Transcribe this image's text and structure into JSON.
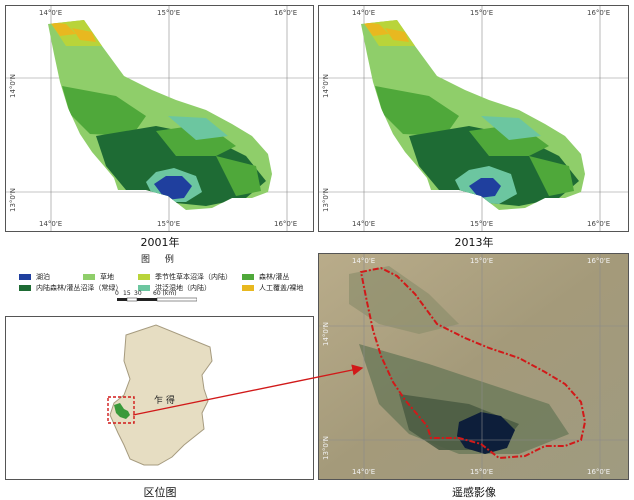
{
  "panels": {
    "map2001": {
      "caption": "2001年",
      "ticks_top": [
        "14°0'E",
        "15°0'E",
        "16°0'E"
      ],
      "ticks_bottom": [
        "14°0'E",
        "15°0'E",
        "16°0'E"
      ],
      "ticks_left": [
        "14°0'N",
        "13°0'N"
      ]
    },
    "map2013": {
      "caption": "2013年",
      "ticks_top": [
        "14°0'E",
        "15°0'E",
        "16°0'E"
      ],
      "ticks_bottom": [
        "14°0'E",
        "15°0'E",
        "16°0'E"
      ],
      "ticks_left": [
        "14°0'N",
        "13°0'N"
      ]
    },
    "location": {
      "caption": "区位图",
      "country_label": "乍 得"
    },
    "remote": {
      "caption": "遥感影像",
      "ticks_top": [
        "14°0'E",
        "15°0'E",
        "16°0'E"
      ],
      "ticks_bottom": [
        "14°0'E",
        "15°0'E",
        "16°0'E"
      ],
      "ticks_left": [
        "14°0'N",
        "13°0'N"
      ]
    }
  },
  "legend": {
    "title": "图 例",
    "items": [
      {
        "label": "湖泊",
        "color": "#1f3f9e"
      },
      {
        "label": "草地",
        "color": "#8fce6a"
      },
      {
        "label": "季节性草本沼泽（内陆）",
        "color": "#b9d43a"
      },
      {
        "label": "森林/灌丛",
        "color": "#4fa83a"
      },
      {
        "label": "内陆森林/灌丛沼泽（常绿）",
        "color": "#1e6b34"
      },
      {
        "label": "洪泛湿地（内陆）",
        "color": "#6cc6a0"
      },
      {
        "label": "人工覆盖/裸地",
        "color": "#e8b820"
      }
    ],
    "scale": {
      "labels": [
        "0",
        "15",
        "30",
        "60 (km)"
      ]
    }
  },
  "colors": {
    "arrow": "#d11919",
    "chad_fill": "#e6ddc2",
    "chad_outline": "#a69b7f"
  }
}
